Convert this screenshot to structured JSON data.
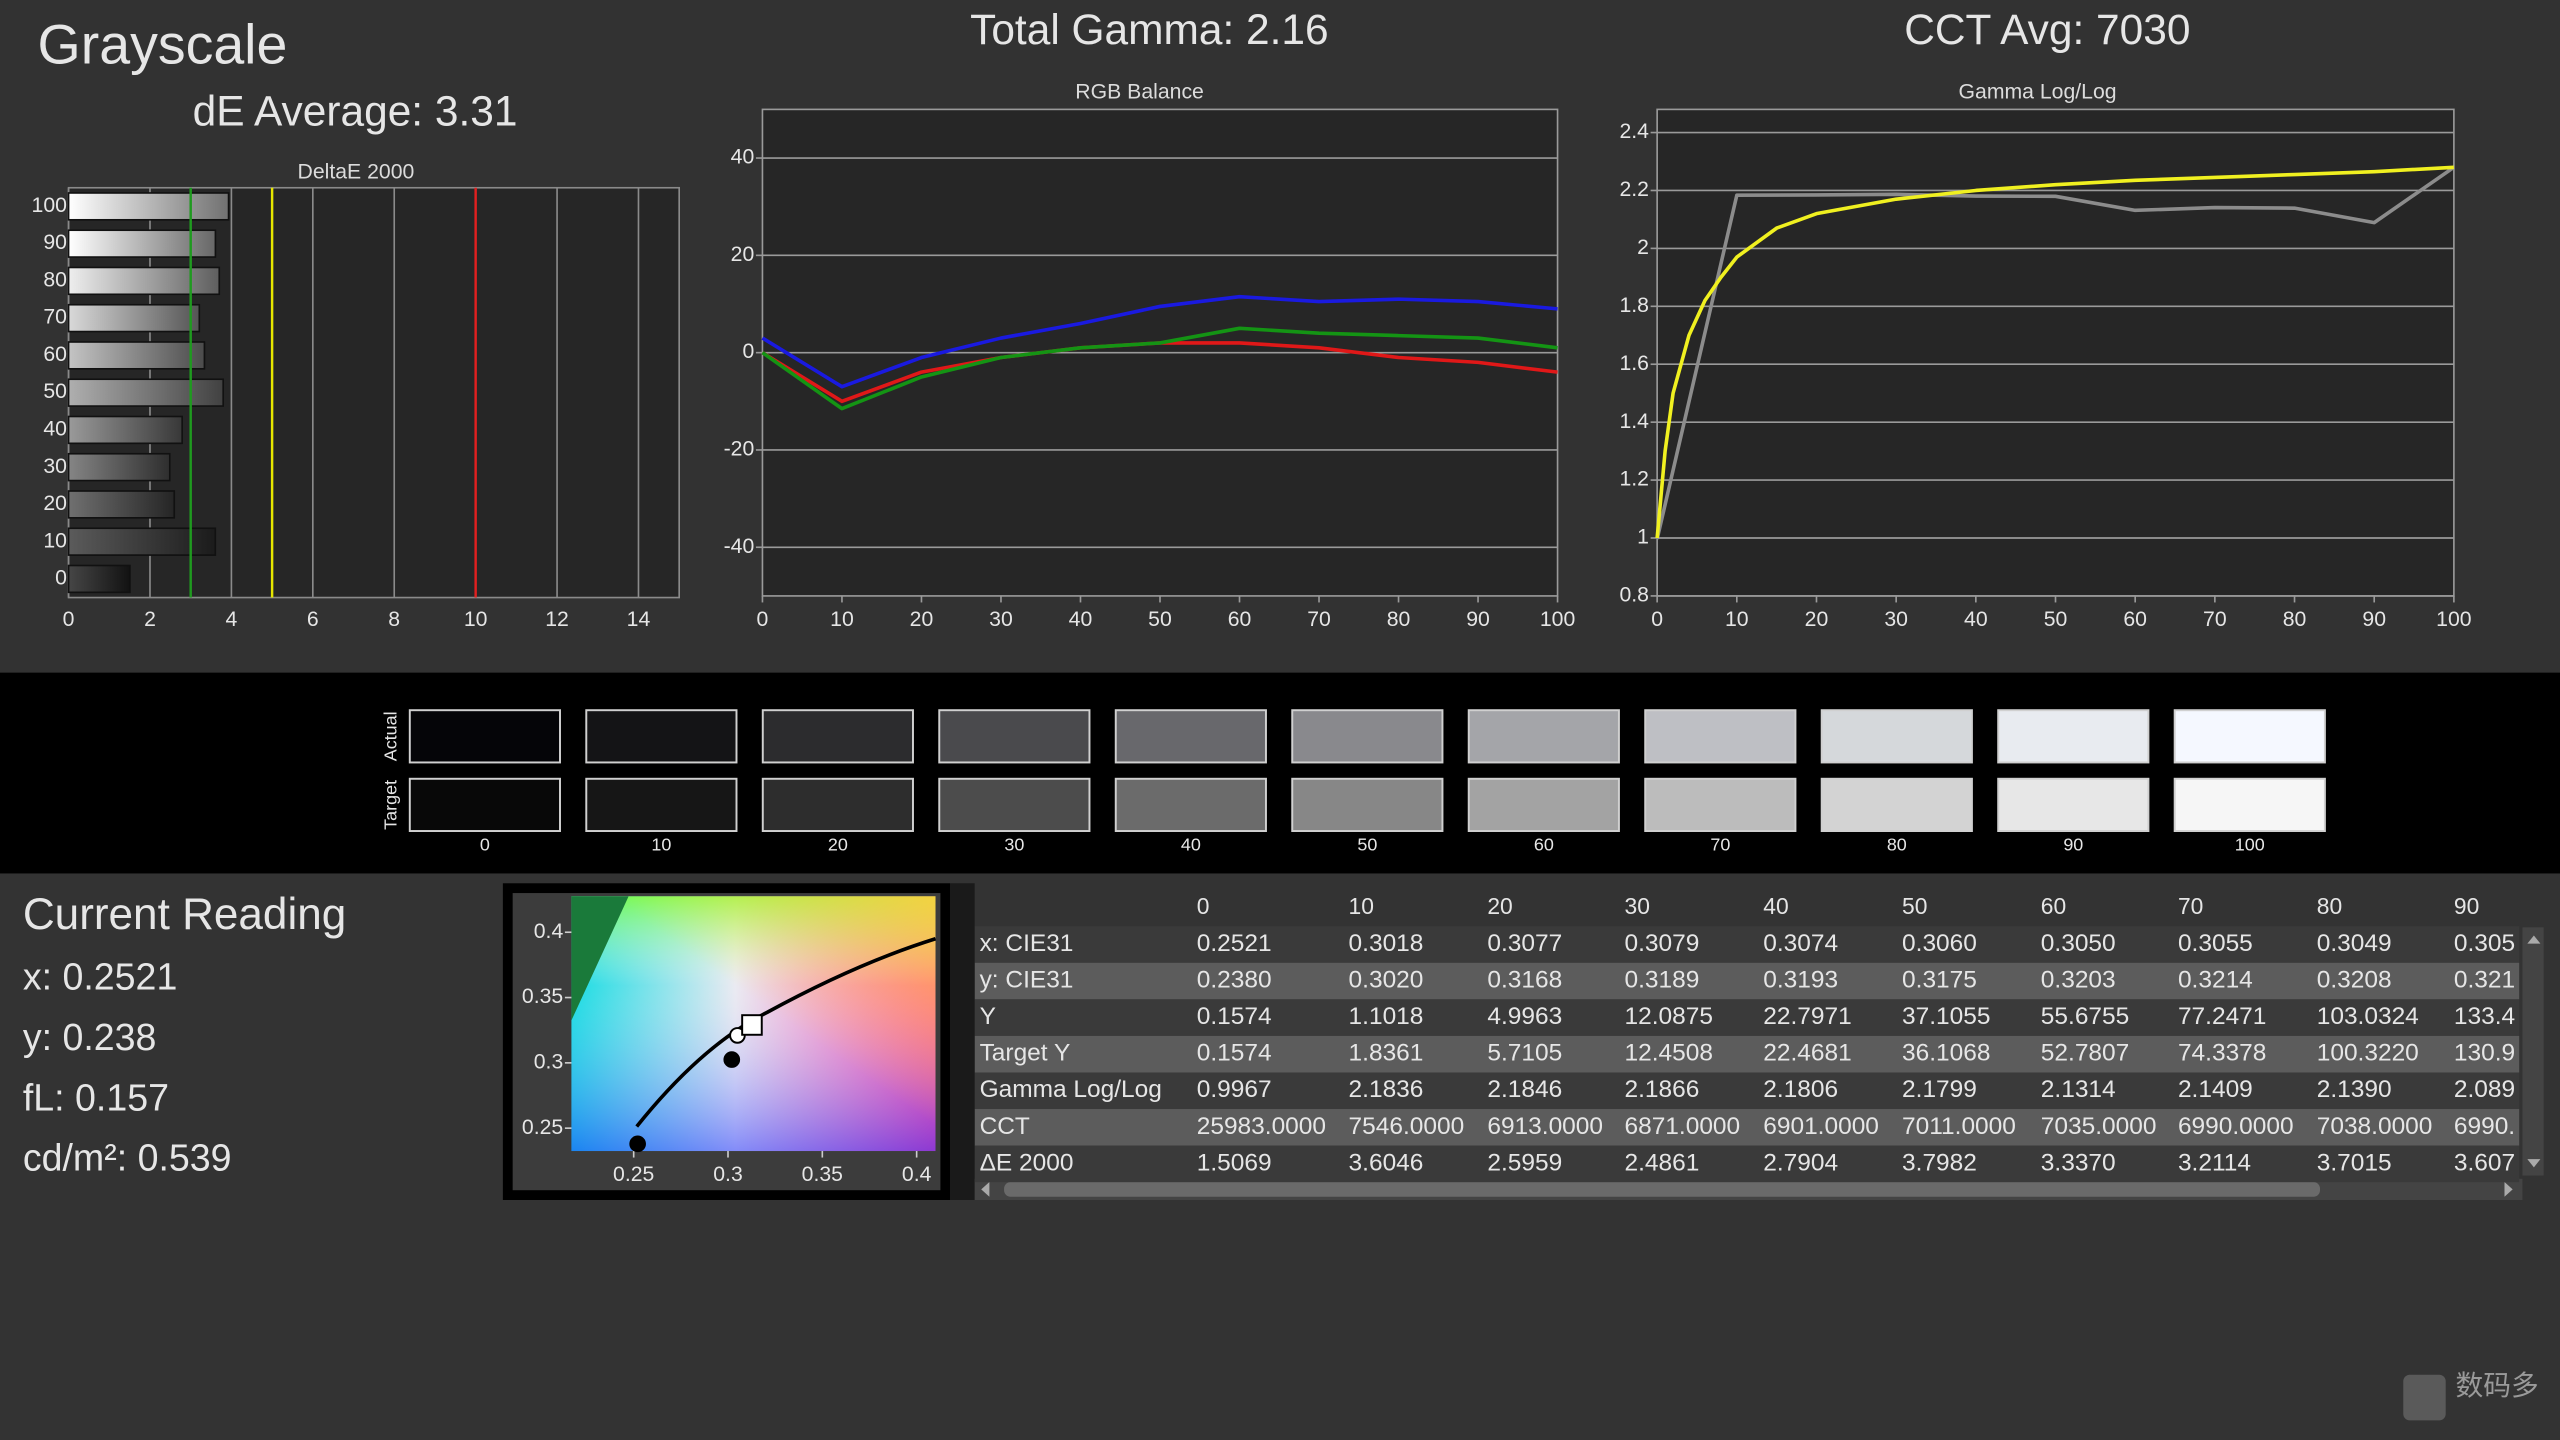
{
  "header": {
    "title": "Grayscale",
    "de_average": "dE Average: 3.31",
    "total_gamma": "Total Gamma: 2.16",
    "cct_avg": "CCT Avg: 7030"
  },
  "chart_data": [
    {
      "type": "hbar",
      "title": "DeltaE 2000",
      "categories": [
        "0",
        "10",
        "20",
        "30",
        "40",
        "50",
        "60",
        "70",
        "80",
        "90",
        "100"
      ],
      "values": [
        1.5069,
        3.6046,
        2.5959,
        2.4861,
        2.7904,
        3.7982,
        3.337,
        3.2114,
        3.7015,
        3.607,
        3.93
      ],
      "xlim": [
        0,
        15
      ],
      "xticks": [
        0,
        2,
        4,
        6,
        8,
        10,
        12,
        14
      ],
      "grid": true,
      "references": [
        {
          "value": 3,
          "color": "#1f9a1f"
        },
        {
          "value": 5,
          "color": "#e6e600"
        },
        {
          "value": 10,
          "color": "#e02020"
        }
      ]
    },
    {
      "type": "line",
      "title": "RGB Balance",
      "x": [
        0,
        10,
        20,
        30,
        40,
        50,
        60,
        70,
        80,
        90,
        100
      ],
      "xlim": [
        0,
        100
      ],
      "xticks": [
        0,
        10,
        20,
        30,
        40,
        50,
        60,
        70,
        80,
        90,
        100
      ],
      "ylim": [
        -50,
        50
      ],
      "yticks": [
        -40,
        -20,
        0,
        20,
        40
      ],
      "grid": true,
      "series": [
        {
          "color": "#e01818",
          "values": [
            0,
            -10,
            -4,
            -1,
            1,
            2,
            2,
            1,
            -1,
            -2,
            -4
          ]
        },
        {
          "color": "#149414",
          "values": [
            0,
            -11.5,
            -5,
            -1,
            1,
            2,
            5,
            4,
            3.5,
            3,
            1
          ]
        },
        {
          "color": "#1a1ae0",
          "values": [
            3,
            -7,
            -1,
            3,
            6,
            9.5,
            11.5,
            10.5,
            11,
            10.5,
            9
          ]
        }
      ]
    },
    {
      "type": "line",
      "title": "Gamma Log/Log",
      "xlim": [
        0,
        100
      ],
      "xticks": [
        0,
        10,
        20,
        30,
        40,
        50,
        60,
        70,
        80,
        90,
        100
      ],
      "ylim": [
        0.8,
        2.48
      ],
      "yticks": [
        0.8,
        1,
        1.2,
        1.4,
        1.6,
        1.8,
        2,
        2.2,
        2.4
      ],
      "grid": true,
      "series": [
        {
          "color": "#8c8c8c",
          "x": [
            0,
            10,
            20,
            30,
            40,
            50,
            60,
            70,
            80,
            90,
            100
          ],
          "values": [
            0.9967,
            2.1836,
            2.1846,
            2.1866,
            2.1806,
            2.1799,
            2.1314,
            2.1409,
            2.139,
            2.089,
            2.28
          ]
        },
        {
          "color": "#f0f020",
          "x": [
            0,
            1,
            2,
            4,
            6,
            8,
            10,
            15,
            20,
            30,
            40,
            50,
            60,
            70,
            80,
            90,
            100
          ],
          "values": [
            1.0,
            1.3,
            1.5,
            1.7,
            1.82,
            1.9,
            1.97,
            2.07,
            2.12,
            2.17,
            2.2,
            2.22,
            2.235,
            2.245,
            2.255,
            2.265,
            2.28
          ]
        }
      ]
    },
    {
      "type": "scatter",
      "xlim": [
        0.217,
        0.41
      ],
      "xticks": [
        0.25,
        0.3,
        0.35,
        0.4
      ],
      "ylim": [
        0.2325,
        0.4275
      ],
      "yticks": [
        0.25,
        0.3,
        0.35,
        0.4
      ],
      "series": [
        {
          "color": "#000000",
          "marker": "circle",
          "x": [
            0.2521,
            0.302
          ],
          "values": [
            0.238,
            0.3025
          ]
        },
        {
          "color": "#ffffff",
          "marker": "circle",
          "x": [
            0.305
          ],
          "values": [
            0.321
          ]
        },
        {
          "color": "#ffffff",
          "marker": "square",
          "x": [
            0.3127
          ],
          "values": [
            0.329
          ]
        }
      ]
    }
  ],
  "swatches": {
    "row_labels": [
      "Actual",
      "Target"
    ],
    "labels": [
      "0",
      "10",
      "20",
      "30",
      "40",
      "50",
      "60",
      "70",
      "80",
      "90",
      "100"
    ],
    "actual_colors": [
      "#050508",
      "#141416",
      "#2c2c2e",
      "#4a4a4d",
      "#68686c",
      "#89898d",
      "#a4a5a9",
      "#bebfc4",
      "#d5d8db",
      "#e8ebf0",
      "#f5f8ff"
    ],
    "target_colors": [
      "#080808",
      "#161616",
      "#2d2d2d",
      "#4c4c4c",
      "#6b6b6b",
      "#878787",
      "#a3a3a3",
      "#bcbcbc",
      "#d3d3d3",
      "#e7e7e7",
      "#f6f6f6"
    ]
  },
  "current_reading": {
    "title": "Current Reading",
    "lines": [
      "x: 0.2521",
      "y: 0.238",
      "fL: 0.157",
      "cd/m²: 0.539"
    ]
  },
  "table": {
    "columns": [
      "0",
      "10",
      "20",
      "30",
      "40",
      "50",
      "60",
      "70",
      "80",
      "90"
    ],
    "rows": [
      [
        "x: CIE31",
        "0.2521",
        "0.3018",
        "0.3077",
        "0.3079",
        "0.3074",
        "0.3060",
        "0.3050",
        "0.3055",
        "0.3049",
        "0.305"
      ],
      [
        "y: CIE31",
        "0.2380",
        "0.3020",
        "0.3168",
        "0.3189",
        "0.3193",
        "0.3175",
        "0.3203",
        "0.3214",
        "0.3208",
        "0.321"
      ],
      [
        "Y",
        "0.1574",
        "1.1018",
        "4.9963",
        "12.0875",
        "22.7971",
        "37.1055",
        "55.6755",
        "77.2471",
        "103.0324",
        "133.4"
      ],
      [
        "Target Y",
        "0.1574",
        "1.8361",
        "5.7105",
        "12.4508",
        "22.4681",
        "36.1068",
        "52.7807",
        "74.3378",
        "100.3220",
        "130.9"
      ],
      [
        "Gamma Log/Log",
        "0.9967",
        "2.1836",
        "2.1846",
        "2.1866",
        "2.1806",
        "2.1799",
        "2.1314",
        "2.1409",
        "2.1390",
        "2.089"
      ],
      [
        "CCT",
        "25983.0000",
        "7546.0000",
        "6913.0000",
        "6871.0000",
        "6901.0000",
        "7011.0000",
        "7035.0000",
        "6990.0000",
        "7038.0000",
        "6990."
      ],
      [
        "ΔE 2000",
        "1.5069",
        "3.6046",
        "2.5959",
        "2.4861",
        "2.7904",
        "3.7982",
        "3.3370",
        "3.2114",
        "3.7015",
        "3.607"
      ]
    ]
  },
  "watermark": "数码多"
}
